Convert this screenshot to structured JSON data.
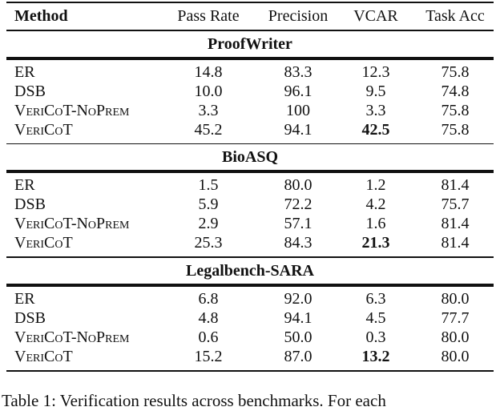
{
  "table": {
    "headers": [
      "Method",
      "Pass Rate",
      "Precision",
      "VCAR",
      "Task Acc"
    ],
    "sections": [
      {
        "title": "ProofWriter",
        "rows": [
          {
            "method": "ER",
            "cells": [
              "14.8",
              "83.3",
              "12.3",
              "75.8"
            ],
            "bold": []
          },
          {
            "method": "DSB",
            "cells": [
              "10.0",
              "96.1",
              "9.5",
              "74.8"
            ],
            "bold": []
          },
          {
            "method": "VeriCoT-NoPrem",
            "cells": [
              "3.3",
              "100",
              "3.3",
              "75.8"
            ],
            "bold": []
          },
          {
            "method": "VeriCoT",
            "cells": [
              "45.2",
              "94.1",
              "42.5",
              "75.8"
            ],
            "bold": [
              2
            ]
          }
        ]
      },
      {
        "title": "BioASQ",
        "rows": [
          {
            "method": "ER",
            "cells": [
              "1.5",
              "80.0",
              "1.2",
              "81.4"
            ],
            "bold": []
          },
          {
            "method": "DSB",
            "cells": [
              "5.9",
              "72.2",
              "4.2",
              "75.7"
            ],
            "bold": []
          },
          {
            "method": "VeriCoT-NoPrem",
            "cells": [
              "2.9",
              "57.1",
              "1.6",
              "81.4"
            ],
            "bold": []
          },
          {
            "method": "VeriCoT",
            "cells": [
              "25.3",
              "84.3",
              "21.3",
              "81.4"
            ],
            "bold": [
              2
            ]
          }
        ]
      },
      {
        "title": "Legalbench-SARA",
        "rows": [
          {
            "method": "ER",
            "cells": [
              "6.8",
              "92.0",
              "6.3",
              "80.0"
            ],
            "bold": []
          },
          {
            "method": "DSB",
            "cells": [
              "4.8",
              "94.1",
              "4.5",
              "77.7"
            ],
            "bold": []
          },
          {
            "method": "VeriCoT-NoPrem",
            "cells": [
              "0.6",
              "50.0",
              "0.3",
              "80.0"
            ],
            "bold": []
          },
          {
            "method": "VeriCoT",
            "cells": [
              "15.2",
              "87.0",
              "13.2",
              "80.0"
            ],
            "bold": [
              2
            ]
          }
        ]
      }
    ]
  },
  "caption": "Table 1: Verification results across benchmarks. For each"
}
